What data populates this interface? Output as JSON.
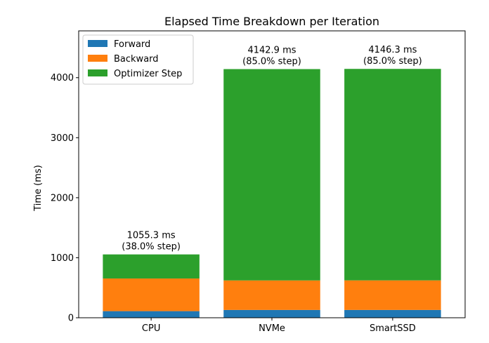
{
  "chart_data": {
    "type": "bar",
    "stacked": true,
    "title": "Elapsed Time Breakdown per Iteration",
    "xlabel": "",
    "ylabel": "Time (ms)",
    "categories": [
      "CPU",
      "NVMe",
      "SmartSSD"
    ],
    "ylim": [
      0,
      4780
    ],
    "yticks": [
      0,
      1000,
      2000,
      3000,
      4000
    ],
    "series": [
      {
        "name": "Forward",
        "color": "#1f77b4",
        "values": [
          110,
          130,
          130
        ]
      },
      {
        "name": "Backward",
        "color": "#ff7f0e",
        "values": [
          544,
          492,
          493
        ]
      },
      {
        "name": "Optimizer Step",
        "color": "#2ca02c",
        "values": [
          401.3,
          3520.9,
          3523.3
        ]
      }
    ],
    "annotations": [
      {
        "category": "CPU",
        "line1": "1055.3 ms",
        "line2": "(38.0% step)",
        "total": 1055.3
      },
      {
        "category": "NVMe",
        "line1": "4142.9 ms",
        "line2": "(85.0% step)",
        "total": 4142.9
      },
      {
        "category": "SmartSSD",
        "line1": "4146.3 ms",
        "line2": "(85.0% step)",
        "total": 4146.3
      }
    ],
    "legend": {
      "placement": "upper-left"
    },
    "grid": false
  }
}
